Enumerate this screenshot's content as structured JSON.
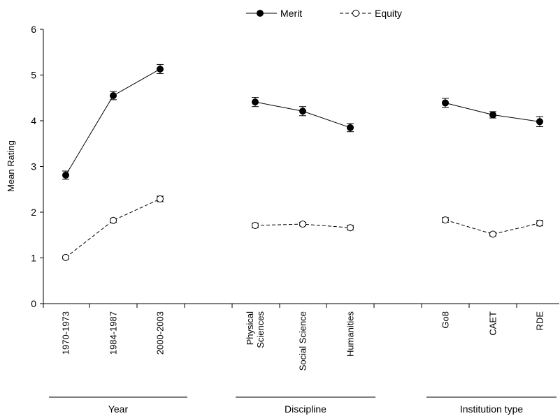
{
  "chart_data": {
    "type": "line",
    "ylabel": "Mean Rating",
    "ylim": [
      0,
      6
    ],
    "y_ticks": [
      "0",
      "1",
      "2",
      "3",
      "4",
      "5",
      "6"
    ],
    "legend": {
      "placement": "top-center",
      "entries": [
        {
          "label": "Merit",
          "style": "solid-filled"
        },
        {
          "label": "Equity",
          "style": "dashed-open"
        }
      ]
    },
    "groups": [
      {
        "name": "Year",
        "categories": [
          "1970-1973",
          "1984-1987",
          "2000-2003"
        ],
        "merit": [
          2.81,
          4.55,
          5.13
        ],
        "merit_err": [
          0.09,
          0.09,
          0.1
        ],
        "equity": [
          1.01,
          1.82,
          2.29
        ],
        "equity_err": [
          0.03,
          0.04,
          0.06
        ]
      },
      {
        "name": "Discipline",
        "categories": [
          "Physical\nSciences",
          "Social Science",
          "Humanities"
        ],
        "merit": [
          4.41,
          4.21,
          3.85
        ],
        "merit_err": [
          0.1,
          0.1,
          0.09
        ],
        "equity": [
          1.71,
          1.74,
          1.66
        ],
        "equity_err": [
          0.05,
          0.04,
          0.05
        ]
      },
      {
        "name": "Institution type",
        "categories": [
          "Go8",
          "CAET",
          "RDE"
        ],
        "merit": [
          4.39,
          4.13,
          3.98
        ],
        "merit_err": [
          0.1,
          0.07,
          0.11
        ],
        "equity": [
          1.83,
          1.52,
          1.76
        ],
        "equity_err": [
          0.05,
          0.04,
          0.06
        ]
      }
    ]
  }
}
